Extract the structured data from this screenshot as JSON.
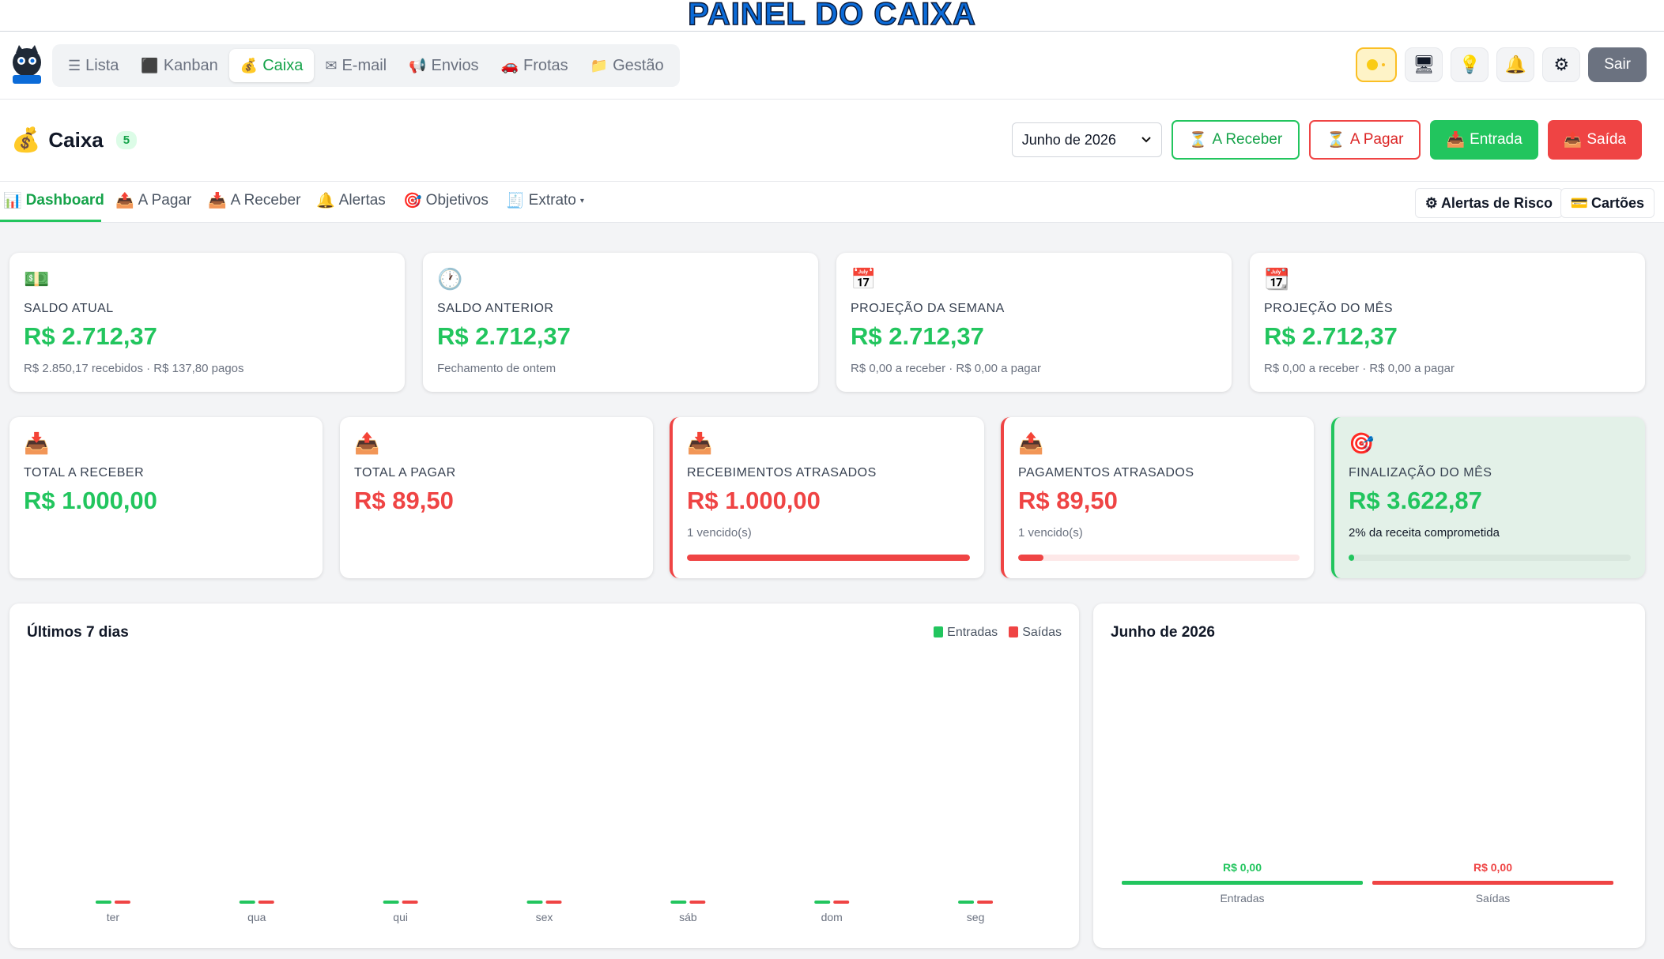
{
  "banner": {
    "title": "PAINEL DO CAIXA"
  },
  "nav": {
    "tabs": [
      {
        "icon": "☰",
        "label": "Lista",
        "active": false
      },
      {
        "icon": "⬛",
        "label": "Kanban",
        "active": false
      },
      {
        "icon": "💰",
        "label": "Caixa",
        "active": true
      },
      {
        "icon": "✉",
        "label": "E-mail",
        "active": false
      },
      {
        "icon": "📢",
        "label": "Envios",
        "active": false
      },
      {
        "icon": "🚗",
        "label": "Frotas",
        "active": false
      },
      {
        "icon": "📁",
        "label": "Gestão",
        "active": false
      }
    ],
    "logout_label": "Sair"
  },
  "header": {
    "title": "Caixa",
    "count": "5",
    "month": "Junho de 2026",
    "buttons": {
      "receber": "A Receber",
      "pagar": "A Pagar",
      "entrada": "Entrada",
      "saida": "Saída"
    }
  },
  "subtabs": {
    "items": [
      "Dashboard",
      "A Pagar",
      "A Receber",
      "Alertas",
      "Objetivos",
      "Extrato"
    ],
    "risk_alerts": "Alertas de Risco",
    "cards": "Cartões"
  },
  "cards_top": [
    {
      "label": "SALDO ATUAL",
      "value": "R$ 2.712,37",
      "sub": "R$ 2.850,17 recebidos · R$ 137,80 pagos"
    },
    {
      "label": "SALDO ANTERIOR",
      "value": "R$ 2.712,37",
      "sub": "Fechamento de ontem"
    },
    {
      "label": "PROJEÇÃO DA SEMANA",
      "value": "R$ 2.712,37",
      "sub": "R$ 0,00 a receber · R$ 0,00 a pagar"
    },
    {
      "label": "PROJEÇÃO DO MÊS",
      "value": "R$ 2.712,37",
      "sub": "R$ 0,00 a receber · R$ 0,00 a pagar"
    }
  ],
  "cards_bottom": [
    {
      "label": "TOTAL A RECEBER",
      "value": "R$ 1.000,00"
    },
    {
      "label": "TOTAL A PAGAR",
      "value": "R$ 89,50"
    },
    {
      "label": "RECEBIMENTOS ATRASADOS",
      "value": "R$ 1.000,00",
      "sub": "1 vencido(s)",
      "progress": 1.0
    },
    {
      "label": "PAGAMENTOS ATRASADOS",
      "value": "R$ 89,50",
      "sub": "1 vencido(s)",
      "progress": 0.09
    },
    {
      "label": "FINALIZAÇÃO DO MÊS",
      "value": "R$ 3.622,87",
      "sub": "2% da receita comprometida",
      "progress": 0.02
    }
  ],
  "colors": {
    "green": "#22c55e",
    "red": "#ef4444"
  },
  "chart_data": [
    {
      "type": "bar",
      "title": "Últimos 7 dias",
      "categories": [
        "ter",
        "qua",
        "qui",
        "sex",
        "sáb",
        "dom",
        "seg"
      ],
      "series": [
        {
          "name": "Entradas",
          "values": [
            0,
            0,
            0,
            0,
            0,
            0,
            0
          ]
        },
        {
          "name": "Saídas",
          "values": [
            0,
            0,
            0,
            0,
            0,
            0,
            0
          ]
        }
      ],
      "legend": "top-right",
      "grid": false
    },
    {
      "type": "bar",
      "title": "Junho de 2026",
      "categories": [
        "Entradas",
        "Saídas"
      ],
      "values": [
        0,
        0
      ],
      "data_labels": [
        "R$ 0,00",
        "R$ 0,00"
      ],
      "grid": false
    }
  ]
}
